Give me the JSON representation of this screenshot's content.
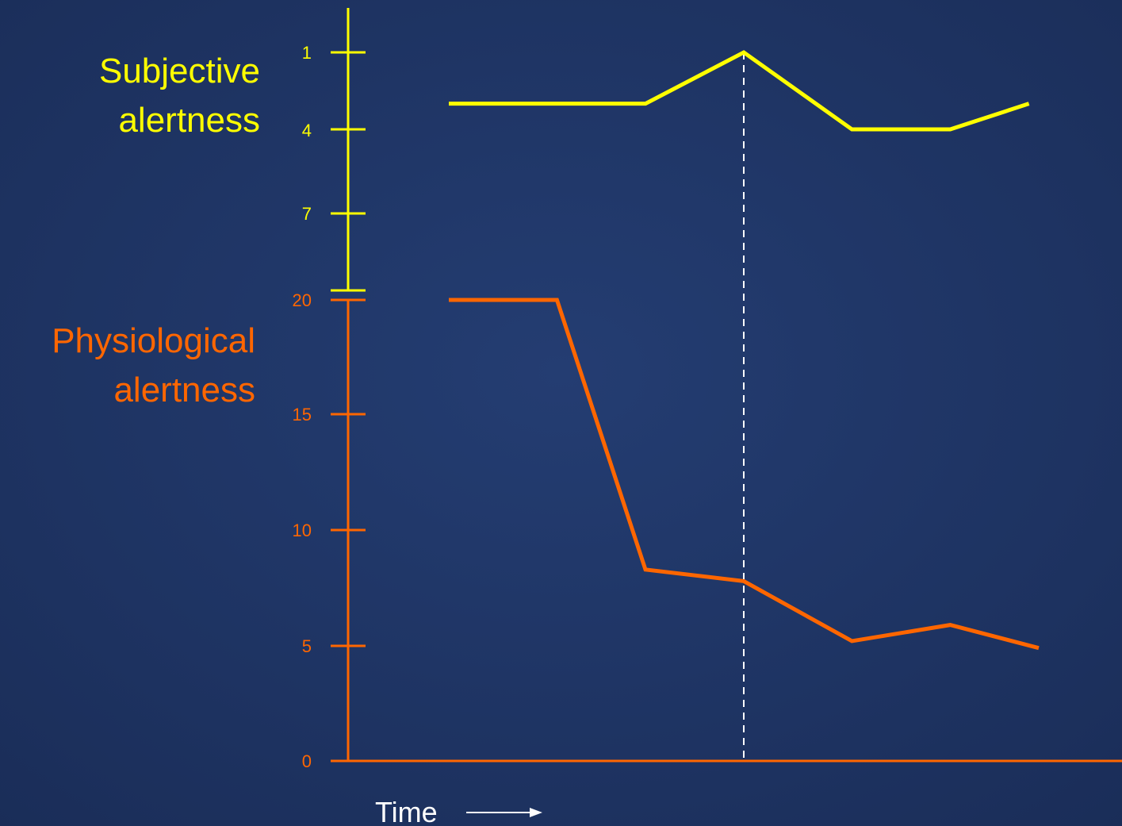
{
  "chart_data": {
    "type": "line",
    "xlabel": "Time",
    "colors": {
      "subjective": "#ffff00",
      "physiological": "#ff6600",
      "marker": "#ffffff"
    },
    "subjective": {
      "axis_title": [
        "Subjective",
        "alertness"
      ],
      "ticks": [
        "1",
        "4",
        "7"
      ],
      "tick_values": [
        1,
        4,
        7
      ],
      "axis_inverted": true,
      "series": {
        "name": "",
        "x": [
          0,
          2,
          3,
          4.1,
          5.1,
          5.9
        ],
        "values": [
          3.0,
          3.0,
          1.0,
          4.0,
          4.0,
          3.0
        ]
      }
    },
    "physiological": {
      "axis_title": [
        "Physiological",
        "alertness"
      ],
      "ticks": [
        "0",
        "5",
        "10",
        "15",
        "20"
      ],
      "tick_values": [
        0,
        5,
        10,
        15,
        20
      ],
      "ylim": [
        0,
        20
      ],
      "series": {
        "name": "",
        "x": [
          0,
          1.1,
          2,
          3,
          4.1,
          5.1,
          6
        ],
        "values": [
          20,
          20,
          8.3,
          7.8,
          5.2,
          5.9,
          4.9
        ]
      }
    },
    "marker_x": 3
  }
}
